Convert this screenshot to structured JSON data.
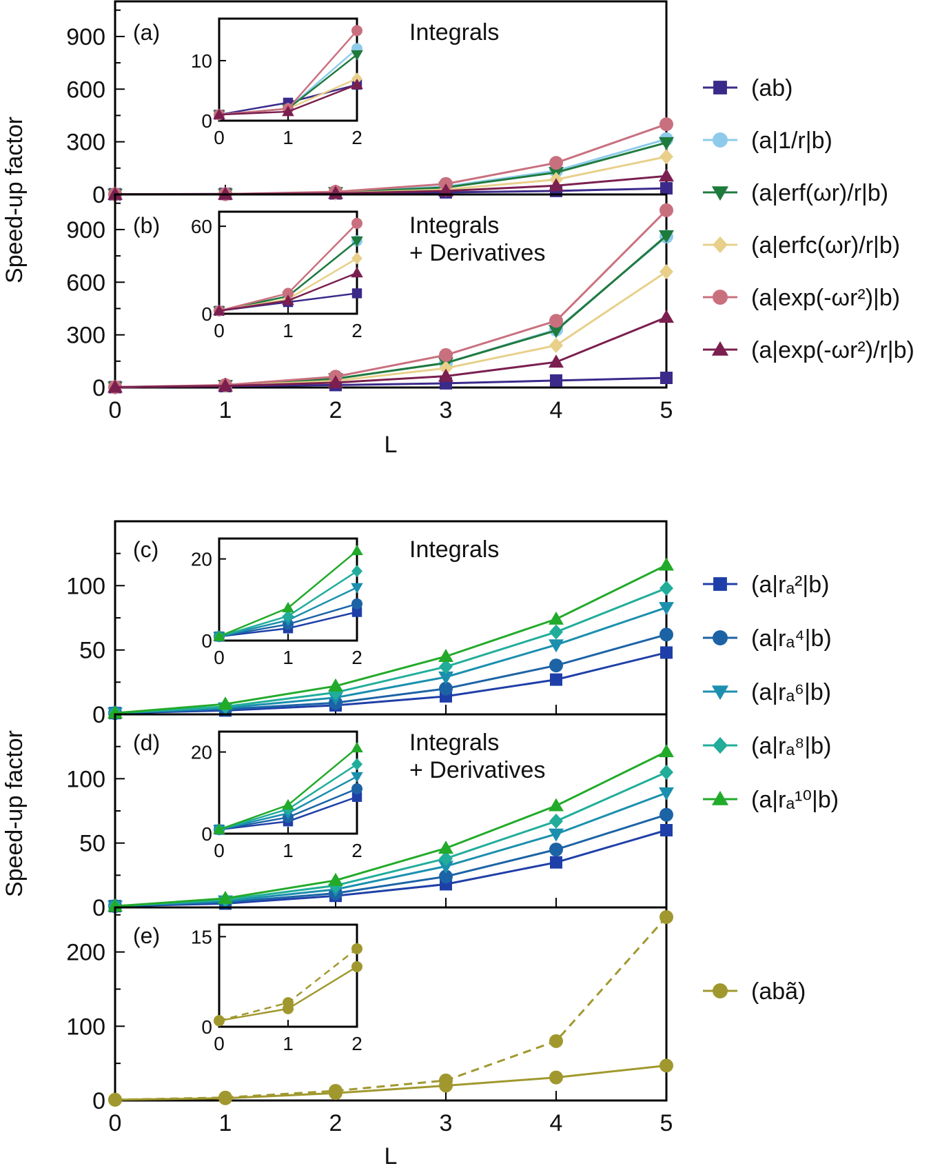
{
  "figure": {
    "ylabel_top": "Speed-up factor",
    "ylabel_bottom": "Speed-up factor",
    "xlabel_top": "L",
    "xlabel_bottom": "L"
  },
  "legend_top": [
    {
      "label": "(ab)",
      "color": "#3b2a8a",
      "marker": "square"
    },
    {
      "label": "(a|1/r|b)",
      "color": "#8ecbeb",
      "marker": "circle"
    },
    {
      "label": "(a|erf(ωr)/r|b)",
      "color": "#1f7a3e",
      "marker": "triangle-down"
    },
    {
      "label": "(a|erfc(ωr)/r|b)",
      "color": "#e8d08a",
      "marker": "diamond"
    },
    {
      "label": "(a|exp(-ωr²)|b)",
      "color": "#c9707f",
      "marker": "circle"
    },
    {
      "label": "(a|exp(-ωr²)/r|b)",
      "color": "#7a1f4f",
      "marker": "triangle-up"
    }
  ],
  "legend_bottom": [
    {
      "label": "(a|rₐ²|b)",
      "color": "#1f3fa8",
      "marker": "square"
    },
    {
      "label": "(a|rₐ⁴|b)",
      "color": "#1c63a6",
      "marker": "circle"
    },
    {
      "label": "(a|rₐ⁶|b)",
      "color": "#1b8fae",
      "marker": "triangle-down"
    },
    {
      "label": "(a|rₐ⁸|b)",
      "color": "#21ad9a",
      "marker": "diamond"
    },
    {
      "label": "(a|rₐ¹⁰|b)",
      "color": "#22aa2a",
      "marker": "triangle-up"
    }
  ],
  "legend_e": [
    {
      "label": "(abã)",
      "color": "#a0982e",
      "marker": "circle"
    }
  ],
  "chart_data": [
    {
      "panel": "(a)",
      "title": "Integrals",
      "type": "line",
      "x": [
        0,
        1,
        2,
        3,
        4,
        5
      ],
      "xlim": [
        0,
        5
      ],
      "ylim": [
        0,
        1100
      ],
      "yticks": [
        0,
        300,
        600,
        900
      ],
      "series": [
        {
          "name": "(ab)",
          "values": [
            1,
            3,
            6,
            12,
            20,
            35
          ]
        },
        {
          "name": "(a|1/r|b)",
          "values": [
            1,
            2,
            12,
            45,
            135,
            315
          ]
        },
        {
          "name": "(a|erf(ωr)/r|b)",
          "values": [
            1,
            2,
            11,
            40,
            125,
            295
          ]
        },
        {
          "name": "(a|erfc(ωr)/r|b)",
          "values": [
            1,
            2,
            7,
            28,
            85,
            215
          ]
        },
        {
          "name": "(a|exp(-ωr²)|b)",
          "values": [
            1,
            2,
            15,
            60,
            180,
            400
          ]
        },
        {
          "name": "(a|exp(-ωr²)/r|b)",
          "values": [
            1,
            1.5,
            6,
            20,
            50,
            105
          ]
        }
      ],
      "inset": {
        "xlim": [
          0,
          2
        ],
        "ylim": [
          0,
          17
        ],
        "yticks": [
          0,
          10
        ],
        "xticks": [
          0,
          1,
          2
        ]
      }
    },
    {
      "panel": "(b)",
      "title": "Integrals + Derivatives",
      "type": "line",
      "x": [
        0,
        1,
        2,
        3,
        4,
        5
      ],
      "xlim": [
        0,
        5
      ],
      "ylim": [
        0,
        1100
      ],
      "yticks": [
        0,
        300,
        600,
        900
      ],
      "series": [
        {
          "name": "(ab)",
          "values": [
            2,
            8,
            14,
            24,
            40,
            55
          ]
        },
        {
          "name": "(a|1/r|b)",
          "values": [
            2,
            12,
            50,
            140,
            330,
            860
          ]
        },
        {
          "name": "(a|erf(ωr)/r|b)",
          "values": [
            2,
            12,
            50,
            140,
            325,
            865
          ]
        },
        {
          "name": "(a|erfc(ωr)/r|b)",
          "values": [
            2,
            10,
            38,
            110,
            240,
            660
          ]
        },
        {
          "name": "(a|exp(-ωr²)|b)",
          "values": [
            2,
            14,
            62,
            185,
            380,
            1010
          ]
        },
        {
          "name": "(a|exp(-ωr²)/r|b)",
          "values": [
            2,
            9,
            28,
            65,
            145,
            400
          ]
        }
      ],
      "inset": {
        "xlim": [
          0,
          2
        ],
        "ylim": [
          0,
          70
        ],
        "yticks": [
          0,
          60
        ],
        "xticks": [
          0,
          1,
          2
        ]
      }
    },
    {
      "panel": "(c)",
      "title": "Integrals",
      "type": "line",
      "x": [
        0,
        1,
        2,
        3,
        4,
        5
      ],
      "xlim": [
        0,
        5
      ],
      "ylim": [
        0,
        150
      ],
      "yticks": [
        0,
        50,
        100
      ],
      "series": [
        {
          "name": "(a|rₐ²|b)",
          "values": [
            1,
            3,
            7,
            14,
            27,
            48
          ]
        },
        {
          "name": "(a|rₐ⁴|b)",
          "values": [
            1,
            4,
            9,
            20,
            38,
            62
          ]
        },
        {
          "name": "(a|rₐ⁶|b)",
          "values": [
            1,
            5,
            13,
            29,
            54,
            83
          ]
        },
        {
          "name": "(a|rₐ⁸|b)",
          "values": [
            1,
            6,
            17,
            37,
            64,
            98
          ]
        },
        {
          "name": "(a|rₐ¹⁰|b)",
          "values": [
            1,
            8,
            22,
            45,
            74,
            116
          ]
        }
      ],
      "inset": {
        "xlim": [
          0,
          2
        ],
        "ylim": [
          0,
          25
        ],
        "yticks": [
          0,
          20
        ],
        "xticks": [
          0,
          1,
          2
        ]
      }
    },
    {
      "panel": "(d)",
      "title": "Integrals + Derivatives",
      "type": "line",
      "x": [
        0,
        1,
        2,
        3,
        4,
        5
      ],
      "xlim": [
        0,
        5
      ],
      "ylim": [
        0,
        150
      ],
      "yticks": [
        0,
        50,
        100
      ],
      "series": [
        {
          "name": "(a|rₐ²|b)",
          "values": [
            1,
            3,
            9,
            18,
            35,
            60
          ]
        },
        {
          "name": "(a|rₐ⁴|b)",
          "values": [
            1,
            4,
            11,
            24,
            45,
            72
          ]
        },
        {
          "name": "(a|rₐ⁶|b)",
          "values": [
            1,
            5,
            14,
            32,
            57,
            89
          ]
        },
        {
          "name": "(a|rₐ⁸|b)",
          "values": [
            1,
            6,
            17,
            38,
            67,
            105
          ]
        },
        {
          "name": "(a|rₐ¹⁰|b)",
          "values": [
            1,
            7,
            21,
            46,
            79,
            121
          ]
        }
      ],
      "inset": {
        "xlim": [
          0,
          2
        ],
        "ylim": [
          0,
          25
        ],
        "yticks": [
          0,
          20
        ],
        "xticks": [
          0,
          1,
          2
        ]
      }
    },
    {
      "panel": "(e)",
      "type": "line",
      "x": [
        0,
        1,
        2,
        3,
        4,
        5
      ],
      "xlim": [
        0,
        5
      ],
      "ylim": [
        0,
        260
      ],
      "yticks": [
        0,
        100,
        200
      ],
      "series": [
        {
          "name": "(abã)",
          "style": "solid",
          "values": [
            1,
            3,
            10,
            20,
            31,
            47
          ]
        },
        {
          "name": "(abã)",
          "style": "dashed",
          "values": [
            1,
            4,
            13,
            27,
            80,
            247
          ]
        }
      ],
      "inset": {
        "xlim": [
          0,
          2
        ],
        "ylim": [
          0,
          17
        ],
        "yticks": [
          0,
          15
        ],
        "xticks": [
          0,
          1,
          2
        ]
      }
    }
  ]
}
